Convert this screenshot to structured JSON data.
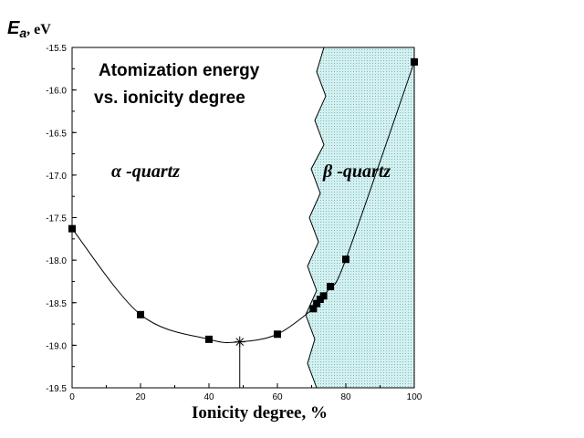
{
  "chart_data": {
    "type": "scatter",
    "title": {
      "line1": "Atomization energy",
      "line2": "vs. ionicity degree"
    },
    "xlabel": "Ionicity degree, %",
    "ylabel": {
      "symbol": "E",
      "subscript": "a",
      "unit": ", eV"
    },
    "xlim": [
      0,
      100
    ],
    "ylim": [
      -19.5,
      -15.5
    ],
    "x_ticks": [
      0,
      20,
      40,
      60,
      80,
      100
    ],
    "y_ticks": [
      -15.5,
      -16.0,
      -16.5,
      -17.0,
      -17.5,
      -18.0,
      -18.5,
      -19.0,
      -19.5
    ],
    "x_tick_labels": [
      "0",
      "20",
      "40",
      "60",
      "80",
      "100"
    ],
    "y_tick_labels": [
      "-15.5",
      "-16.0",
      "-16.5",
      "-17.0",
      "-17.5",
      "-18.0",
      "-18.5",
      "-19.0",
      "-19.5"
    ],
    "grid": false,
    "series": [
      {
        "x": [
          0,
          20,
          40,
          60,
          70.5,
          71.5,
          72.5,
          73.5,
          75.5,
          80,
          100
        ],
        "y": [
          -17.63,
          -18.64,
          -18.93,
          -18.87,
          -18.57,
          -18.51,
          -18.46,
          -18.42,
          -18.31,
          -17.99,
          -15.67
        ]
      }
    ],
    "minimum": {
      "x": 49,
      "y": -18.96
    },
    "phase_boundary_x": 72,
    "phases": [
      {
        "label_symbol": "α",
        "label_text": " -quartz",
        "side": "left"
      },
      {
        "label_symbol": "β",
        "label_text": " -quartz",
        "side": "right"
      }
    ],
    "colors": {
      "beta_region": "#c8ecec",
      "line": "#000000",
      "markers": "#000000"
    }
  }
}
